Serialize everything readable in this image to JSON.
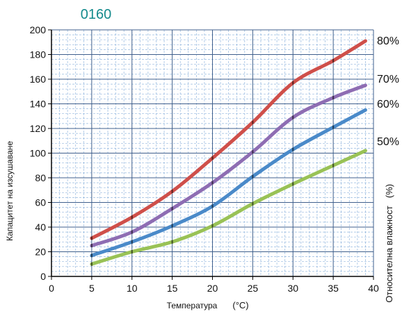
{
  "colors": {
    "background": "#ffffff",
    "grid": "#7ba7d8",
    "axis": "#000000",
    "title": "#138a8c"
  },
  "chart_data": {
    "type": "line",
    "title": "0160",
    "xlabel": "Температура",
    "xunit": "(°C)",
    "ylabel": "Капацитет на изсушаване",
    "y2label": "Относителна влажност",
    "y2unit": "(%)",
    "xlim": [
      0,
      40
    ],
    "ylim": [
      0,
      200
    ],
    "xticks": [
      0,
      5,
      10,
      15,
      20,
      25,
      30,
      35,
      40
    ],
    "yticks": [
      0,
      20,
      40,
      60,
      80,
      100,
      120,
      140,
      160,
      180,
      200
    ],
    "grid": true,
    "marker_x": [
      5,
      10,
      15,
      20,
      25,
      30,
      35
    ],
    "series": [
      {
        "name": "80%",
        "color": "#cf4f4a",
        "x": [
          5,
          10,
          15,
          20,
          25,
          30,
          35,
          39
        ],
        "y": [
          31,
          48,
          69,
          96,
          125,
          157,
          175,
          191
        ]
      },
      {
        "name": "70%",
        "color": "#8e6db3",
        "x": [
          5,
          10,
          15,
          20,
          25,
          30,
          35,
          39
        ],
        "y": [
          25,
          36,
          55,
          76,
          101,
          129,
          145,
          155
        ]
      },
      {
        "name": "60%",
        "color": "#4a8ac9",
        "x": [
          5,
          10,
          15,
          20,
          25,
          30,
          35,
          39
        ],
        "y": [
          17,
          28,
          41,
          57,
          81,
          103,
          121,
          135
        ]
      },
      {
        "name": "50%",
        "color": "#99c256",
        "x": [
          5,
          10,
          15,
          20,
          25,
          30,
          35,
          39
        ],
        "y": [
          10,
          20,
          28,
          41,
          59,
          75,
          90,
          102
        ]
      }
    ]
  }
}
